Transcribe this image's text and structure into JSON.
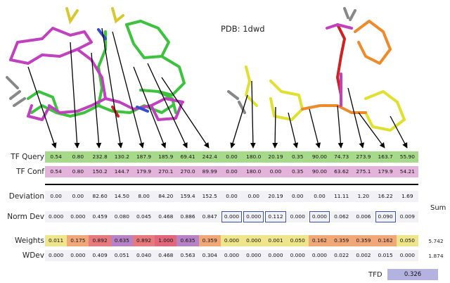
{
  "pdb_label": "PDB: 1dwd",
  "rows": [
    {
      "id": "tfq",
      "label": "TF Query",
      "values": [
        "0.54",
        "0.80",
        "232.8",
        "130.2",
        "187.9",
        "185.9",
        "69.41",
        "242.4",
        "0.00",
        "180.0",
        "20.19",
        "0.35",
        "90.00",
        "74.73",
        "273.9",
        "163.7",
        "55.90"
      ]
    },
    {
      "id": "tfc",
      "label": "TF Conf",
      "values": [
        "0.54",
        "0.80",
        "150.2",
        "144.7",
        "179.9",
        "270.1",
        "270.0",
        "89.99",
        "0.00",
        "180.0",
        "0.00",
        "0.35",
        "90.00",
        "63.62",
        "275.1",
        "179.9",
        "54.21"
      ]
    },
    {
      "id": "dev",
      "label": "Deviation",
      "values": [
        "0.00",
        "0.00",
        "82.60",
        "14.50",
        "8.00",
        "84.20",
        "159.4",
        "152.5",
        "0.00",
        "0.00",
        "20.19",
        "0.00",
        "0.00",
        "11.11",
        "1.20",
        "16.22",
        "1.69"
      ]
    },
    {
      "id": "norm",
      "label": "Norm Dev",
      "values": [
        "0.000",
        "0.000",
        "0.459",
        "0.080",
        "0.045",
        "0.468",
        "0.886",
        "0.847",
        "0.000",
        "0.000",
        "0.112",
        "0.000",
        "0.000",
        "0.062",
        "0.006",
        "0.090",
        "0.009"
      ],
      "boxed": [
        8,
        9,
        10,
        12,
        15
      ]
    },
    {
      "id": "wts",
      "label": "Weights",
      "values": [
        "0.011",
        "0.175",
        "0.892",
        "0.635",
        "0.892",
        "1.000",
        "0.635",
        "0.359",
        "0.000",
        "0.000",
        "0.001",
        "0.050",
        "0.162",
        "0.359",
        "0.359",
        "0.162",
        "0.050"
      ],
      "sum": "5.742"
    },
    {
      "id": "wdev",
      "label": "WDev",
      "values": [
        "0.000",
        "0.000",
        "0.409",
        "0.051",
        "0.040",
        "0.468",
        "0.563",
        "0.304",
        "0.000",
        "0.000",
        "0.000",
        "0.000",
        "0.000",
        "0.022",
        "0.002",
        "0.015",
        "0.000"
      ],
      "sum": "1.874"
    }
  ],
  "sum_label": "Sum",
  "tfd_label": "TFD",
  "tfd_value": "0.326",
  "colors": {
    "tfq_bg": "#a6d98a",
    "tfc_bg": "#e3b3dc",
    "plain_bg": "#f1f1f6",
    "box_border": "#3a4fb0",
    "tfd_bg": "#b4b2e0",
    "weights_bg": [
      "#efe58c",
      "#f0a878",
      "#e67a7c",
      "#b883c6",
      "#e67a7c",
      "#e0687a",
      "#b883c6",
      "#f0a878",
      "#efe58c",
      "#efe58c",
      "#efe58c",
      "#efe58c",
      "#f0a878",
      "#f0a878",
      "#f0a878",
      "#f0a878",
      "#efe58c"
    ]
  }
}
